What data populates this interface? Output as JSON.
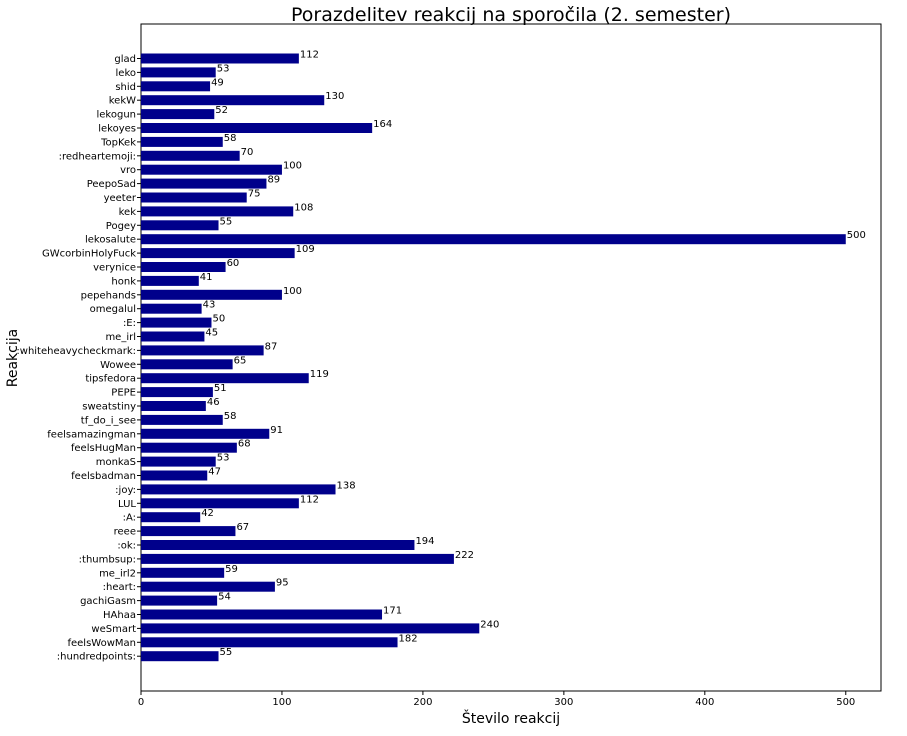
{
  "chart_data": {
    "type": "bar",
    "orientation": "horizontal",
    "title": "Porazdelitev reakcij na sporočila (2. semester)",
    "xlabel": "Število reakcij",
    "ylabel": "Reakcija",
    "xlim": [
      0,
      525
    ],
    "xticks": [
      0,
      100,
      200,
      300,
      400,
      500
    ],
    "grid": false,
    "bar_color": "#00008b",
    "categories": [
      "glad",
      "leko",
      "shid",
      "kekW",
      "lekogun",
      "lekoyes",
      "TopKek",
      ":redheartemoji:",
      "vro",
      "PeepoSad",
      "yeeter",
      "kek",
      "Pogey",
      "lekosalute",
      "GWcorbinHolyFuck",
      "verynice",
      "honk",
      "pepehands",
      "omegalul",
      ":E:",
      "me_irl",
      ":whiteheavycheckmark:",
      "Wowee",
      "tipsfedora",
      "PEPE",
      "sweatstiny",
      "tf_do_i_see",
      "feelsamazingman",
      "feelsHugMan",
      "monkaS",
      "feelsbadman",
      ":joy:",
      "LUL",
      ":A:",
      "reee",
      ":ok:",
      ":thumbsup:",
      "me_irl2",
      ":heart:",
      "gachiGasm",
      "HAhaa",
      "weSmart",
      "feelsWowMan",
      ":hundredpoints:"
    ],
    "values": [
      112,
      53,
      49,
      130,
      52,
      164,
      58,
      70,
      100,
      89,
      75,
      108,
      55,
      500,
      109,
      60,
      41,
      100,
      43,
      50,
      45,
      87,
      65,
      119,
      51,
      46,
      58,
      91,
      68,
      53,
      47,
      138,
      112,
      42,
      67,
      194,
      222,
      59,
      95,
      54,
      171,
      240,
      182,
      55
    ]
  }
}
